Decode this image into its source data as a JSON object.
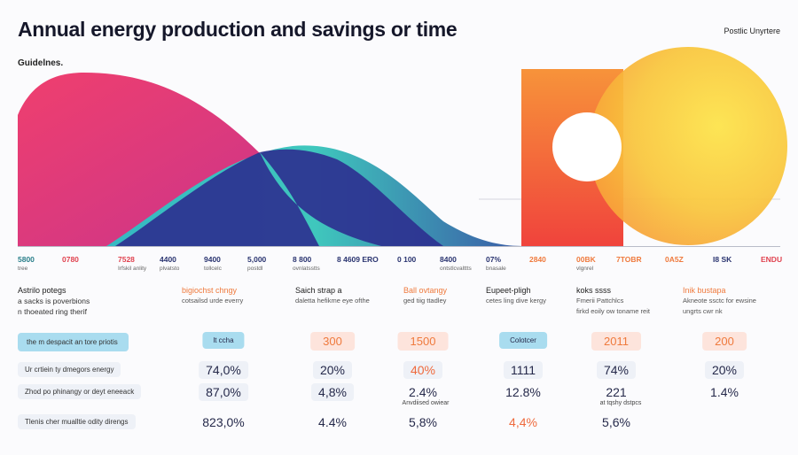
{
  "header": {
    "title": "Annual energy production and savings or time",
    "corner": "Postlic Unyrtere",
    "subtitle": "Guidelnes."
  },
  "axis_labels": [
    {
      "value": "5800",
      "sub": "tree"
    },
    {
      "value": "0780"
    },
    {
      "value": "7528",
      "sub": "Irfskil anlity"
    },
    {
      "value": "4400",
      "sub": "plvatsto"
    },
    {
      "value": "9400",
      "sub": "tollcelc"
    },
    {
      "value": "5,000",
      "sub": "postdl"
    },
    {
      "value": "8 800",
      "sub": "ovnlatsstts"
    },
    {
      "value": "8 4609 ERO"
    },
    {
      "value": "0 100"
    },
    {
      "value": "8400",
      "sub": "ontstlcvalttts"
    },
    {
      "value": "07%",
      "sub": "bnasale"
    },
    {
      "value": "2840"
    },
    {
      "value": "00BK",
      "sub": "vlgnrel"
    },
    {
      "value": "7TOBR"
    },
    {
      "value": "0A5Z"
    },
    {
      "value": "I8 SK"
    },
    {
      "value": "ENDU"
    }
  ],
  "descriptions": [
    {
      "heading": "Astrilo potegs",
      "lines": [
        "a sacks is poverbions",
        "n thoeated ring therif"
      ]
    },
    {
      "heading": "bigiochst chngy",
      "lines": [
        "cotsailsd urde everry"
      ]
    },
    {
      "heading": "Saich strap a",
      "lines": [
        "daletta hefikme eye ofthe"
      ]
    },
    {
      "heading": "Ball ovtangy",
      "lines": [
        "ged tiig ttadley"
      ]
    },
    {
      "heading": "Eupeet-pligh",
      "lines": [
        "cetes ling dive kergy"
      ]
    },
    {
      "heading": "koks ssss",
      "lines": [
        "Fmerii Pattchlcs",
        "firkd eoily ow toname reit"
      ]
    },
    {
      "heading": "Inik bustapa",
      "lines": [
        "Akneote ssctc for ewsine",
        "ungrts cwr nk"
      ]
    }
  ],
  "table": {
    "rows": [
      {
        "label": "the m despacit an tore priotis",
        "cells": [
          "lt ccha",
          "300",
          "1500",
          "Colotcer",
          "2011",
          "200"
        ]
      },
      {
        "label": "Ur crtiein ty dmegors energy",
        "cells": [
          "74,0%",
          "20%",
          "40%",
          "1111",
          "74%",
          "20%"
        ]
      },
      {
        "label": "Zhod po phinangy or deyt eneeack",
        "cells": [
          "87,0%",
          "4,8%",
          "2.4%",
          "12.8%",
          "221",
          "1.4%"
        ]
      },
      {
        "label": "Tlenis cher mualltie odity direngs",
        "cells": [
          "823,0%",
          "4.4%",
          "5,8%",
          "4,4%",
          "5,6%"
        ]
      }
    ],
    "notes": [
      "Anvdiised owiear",
      "at tqshy dstpcs"
    ]
  }
}
